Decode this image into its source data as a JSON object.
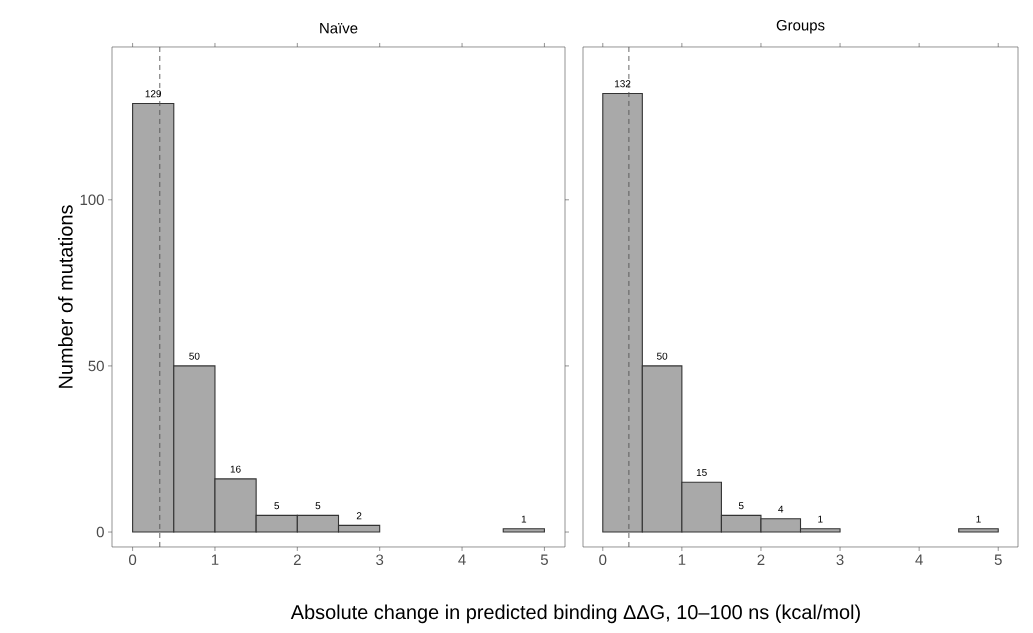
{
  "chart_data": [
    {
      "type": "histogram",
      "title": "Naïve",
      "xlabel": "Absolute change in predicted binding ΔΔG, 10–100 ns (kcal/mol)",
      "ylabel": "Number of mutations",
      "bins": [
        0,
        0.5,
        1,
        1.5,
        2,
        2.5,
        3,
        3.5,
        4,
        4.5,
        5
      ],
      "values": [
        129,
        50,
        16,
        5,
        5,
        2,
        0,
        0,
        0,
        1
      ],
      "value_labels": [
        "129",
        "50",
        "16",
        "5",
        "5",
        "2",
        null,
        null,
        null,
        "1"
      ],
      "color": "#a9a9a9",
      "xlim": [
        -0.25,
        5.25
      ],
      "ylim": [
        -4.5,
        146
      ],
      "xticks": [
        0,
        1,
        2,
        3,
        4,
        5
      ],
      "yticks": [
        0,
        50,
        100
      ],
      "ref_lines": [
        {
          "axis": "x",
          "value": 0.33,
          "color": "#555555",
          "line_style": "dashed"
        }
      ],
      "grid": false
    },
    {
      "type": "histogram",
      "title": "Groups",
      "bins": [
        0,
        0.5,
        1,
        1.5,
        2,
        2.5,
        3,
        3.5,
        4,
        4.5,
        5
      ],
      "values": [
        132,
        50,
        15,
        5,
        4,
        1,
        0,
        0,
        0,
        1
      ],
      "value_labels": [
        "132",
        "50",
        "15",
        "5",
        "4",
        "1",
        null,
        null,
        null,
        "1"
      ],
      "color": "#a9a9a9",
      "xlim": [
        -0.25,
        5.25
      ],
      "ylim": [
        -4.5,
        146
      ],
      "xticks": [
        0,
        1,
        2,
        3,
        4,
        5
      ],
      "ref_lines": [
        {
          "axis": "x",
          "value": 0.33,
          "color": "#555555",
          "line_style": "dashed"
        }
      ],
      "grid": false,
      "tick_labels": "x"
    }
  ]
}
